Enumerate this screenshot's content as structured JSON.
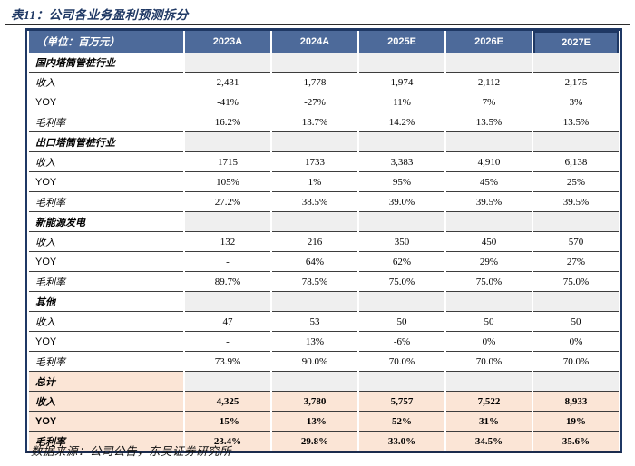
{
  "title": "表11：公司各业务盈利预测拆分",
  "footer": {
    "source_label": "数据来源：公司公告，东吴证券研究所"
  },
  "colors": {
    "accent_navy": "#1F3864",
    "header_bg": "#4D6A9A",
    "section_fill": "#EFEFEF",
    "total_fill": "#FBE5D6"
  },
  "table": {
    "unit_label": "（单位：百万元）",
    "columns": [
      "2023A",
      "2024A",
      "2025E",
      "2026E",
      "2027E"
    ],
    "highlight_column": "2027E",
    "sections": [
      {
        "name": "国内塔筒管桩行业",
        "style": "gray",
        "rows": [
          {
            "label": "收入",
            "values": [
              "2,431",
              "1,778",
              "1,974",
              "2,112",
              "2,175"
            ]
          },
          {
            "label": "YOY",
            "values": [
              "-41%",
              "-27%",
              "11%",
              "7%",
              "3%"
            ]
          },
          {
            "label": "毛利率",
            "values": [
              "16.2%",
              "13.7%",
              "14.2%",
              "13.5%",
              "13.5%"
            ]
          }
        ]
      },
      {
        "name": "出口塔筒管桩行业",
        "style": "gray",
        "rows": [
          {
            "label": "收入",
            "values": [
              "1715",
              "1733",
              "3,383",
              "4,910",
              "6,138"
            ]
          },
          {
            "label": "YOY",
            "values": [
              "105%",
              "1%",
              "95%",
              "45%",
              "25%"
            ]
          },
          {
            "label": "毛利率",
            "values": [
              "27.2%",
              "38.5%",
              "39.0%",
              "39.5%",
              "39.5%"
            ]
          }
        ]
      },
      {
        "name": "新能源发电",
        "style": "gray",
        "rows": [
          {
            "label": "收入",
            "values": [
              "132",
              "216",
              "350",
              "450",
              "570"
            ]
          },
          {
            "label": "YOY",
            "values": [
              "-",
              "64%",
              "62%",
              "29%",
              "27%"
            ]
          },
          {
            "label": "毛利率",
            "values": [
              "89.7%",
              "78.5%",
              "75.0%",
              "75.0%",
              "75.0%"
            ]
          }
        ]
      },
      {
        "name": "其他",
        "style": "gray",
        "rows": [
          {
            "label": "收入",
            "values": [
              "47",
              "53",
              "50",
              "50",
              "50"
            ]
          },
          {
            "label": "YOY",
            "values": [
              "-",
              "13%",
              "-6%",
              "0%",
              "0%"
            ]
          },
          {
            "label": "毛利率",
            "values": [
              "73.9%",
              "90.0%",
              "70.0%",
              "70.0%",
              "70.0%"
            ]
          }
        ]
      },
      {
        "name": "总计",
        "style": "total",
        "rows": [
          {
            "label": "收入",
            "values": [
              "4,325",
              "3,780",
              "5,757",
              "7,522",
              "8,933"
            ]
          },
          {
            "label": "YOY",
            "values": [
              "-15%",
              "-13%",
              "52%",
              "31%",
              "19%"
            ]
          },
          {
            "label": "毛利率",
            "values": [
              "23.4%",
              "29.8%",
              "33.0%",
              "34.5%",
              "35.6%"
            ]
          }
        ]
      }
    ]
  }
}
